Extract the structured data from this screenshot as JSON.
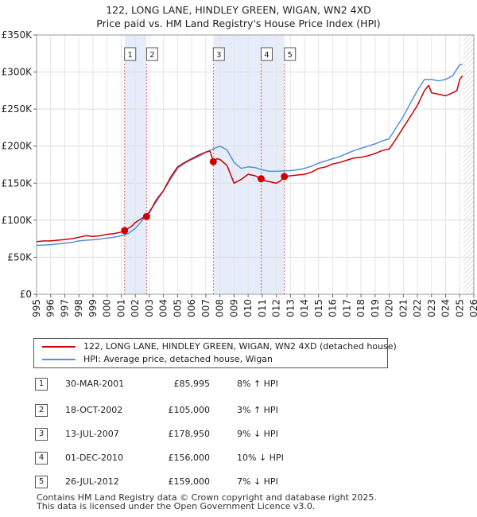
{
  "chart_data": {
    "type": "line",
    "title": "122, LONG LANE, HINDLEY GREEN, WIGAN, WN2 4XD",
    "subtitle": "Price paid vs. HM Land Registry's House Price Index (HPI)",
    "ylim": [
      0,
      350000
    ],
    "xlim": [
      1995,
      2026
    ],
    "y_ticks": [
      {
        "value": 0,
        "label": "£0"
      },
      {
        "value": 50000,
        "label": "£50K"
      },
      {
        "value": 100000,
        "label": "£100K"
      },
      {
        "value": 150000,
        "label": "£150K"
      },
      {
        "value": 200000,
        "label": "£200K"
      },
      {
        "value": 250000,
        "label": "£250K"
      },
      {
        "value": 300000,
        "label": "£300K"
      },
      {
        "value": 350000,
        "label": "£350K"
      }
    ],
    "x_ticks": [
      "1995",
      "1996",
      "1997",
      "1998",
      "1999",
      "2000",
      "2001",
      "2002",
      "2003",
      "2004",
      "2005",
      "2006",
      "2007",
      "2008",
      "2009",
      "2010",
      "2011",
      "2012",
      "2013",
      "2014",
      "2015",
      "2016",
      "2017",
      "2018",
      "2019",
      "2020",
      "2021",
      "2022",
      "2023",
      "2024",
      "2025",
      "2026"
    ],
    "series": [
      {
        "name": "122, LONG LANE, HINDLEY GREEN, WIGAN, WN2 4XD (detached house)",
        "color": "#cc0000",
        "x": [
          1995,
          1995.5,
          1996,
          1996.5,
          1997,
          1997.5,
          1998,
          1998.5,
          1999,
          1999.5,
          2000,
          2000.5,
          2001,
          2001.25,
          2001.75,
          2002,
          2002.5,
          2002.8,
          2003,
          2003.5,
          2004,
          2004.5,
          2005,
          2005.5,
          2006,
          2006.5,
          2007,
          2007.3,
          2007.53,
          2007.8,
          2008,
          2008.5,
          2009,
          2009.5,
          2010,
          2010.5,
          2010.92,
          2011,
          2011.5,
          2012,
          2012.3,
          2012.57,
          2013,
          2013.5,
          2014,
          2014.5,
          2015,
          2015.5,
          2016,
          2016.5,
          2017,
          2017.5,
          2018,
          2018.5,
          2019,
          2019.5,
          2020,
          2020.5,
          2021,
          2021.5,
          2022,
          2022.5,
          2022.8,
          2023,
          2023.5,
          2024,
          2024.5,
          2024.8,
          2025,
          2025.2
        ],
        "y": [
          71000,
          72000,
          72000,
          73000,
          74000,
          75000,
          77000,
          79000,
          78000,
          79000,
          81000,
          82000,
          84000,
          85995,
          92000,
          97000,
          103000,
          105000,
          110000,
          128000,
          140000,
          158000,
          172000,
          178000,
          183000,
          188000,
          192000,
          193000,
          178950,
          183000,
          182000,
          174000,
          150000,
          155000,
          162000,
          160000,
          156000,
          154000,
          152000,
          150000,
          153000,
          159000,
          160000,
          161000,
          162000,
          165000,
          170000,
          172000,
          176000,
          178000,
          181000,
          184000,
          185000,
          187000,
          190000,
          194000,
          196000,
          210000,
          225000,
          240000,
          255000,
          275000,
          282000,
          272000,
          270000,
          268000,
          272000,
          275000,
          290000,
          295000
        ]
      },
      {
        "name": "HPI: Average price, detached house, Wigan",
        "color": "#5b8fd6",
        "x": [
          1995,
          1995.5,
          1996,
          1996.5,
          1997,
          1997.5,
          1998,
          1998.5,
          1999,
          1999.5,
          2000,
          2000.5,
          2001,
          2001.5,
          2002,
          2002.5,
          2003,
          2003.5,
          2004,
          2004.5,
          2005,
          2005.5,
          2006,
          2006.5,
          2007,
          2007.5,
          2008,
          2008.5,
          2009,
          2009.5,
          2010,
          2010.5,
          2011,
          2011.5,
          2012,
          2012.5,
          2013,
          2013.5,
          2014,
          2014.5,
          2015,
          2015.5,
          2016,
          2016.5,
          2017,
          2017.5,
          2018,
          2018.5,
          2019,
          2019.5,
          2020,
          2020.5,
          2021,
          2021.5,
          2022,
          2022.5,
          2023,
          2023.5,
          2024,
          2024.5,
          2025,
          2025.2
        ],
        "y": [
          66000,
          66500,
          67000,
          68000,
          69000,
          70000,
          72000,
          73000,
          73500,
          74500,
          76000,
          77000,
          79000,
          82000,
          89000,
          100000,
          112000,
          125000,
          140000,
          155000,
          170000,
          177000,
          182000,
          186000,
          192000,
          196000,
          200000,
          195000,
          178000,
          170000,
          172000,
          171000,
          168000,
          166000,
          166000,
          166500,
          167000,
          168000,
          170000,
          173000,
          177000,
          180000,
          183000,
          186000,
          190000,
          194000,
          197000,
          200000,
          203000,
          207000,
          210000,
          225000,
          240000,
          258000,
          275000,
          290000,
          290000,
          288000,
          290000,
          295000,
          310000,
          310000
        ]
      }
    ],
    "sales": [
      {
        "num": "1",
        "x": 2001.24,
        "price": 85995
      },
      {
        "num": "2",
        "x": 2002.8,
        "price": 105000
      },
      {
        "num": "3",
        "x": 2007.53,
        "price": 178950
      },
      {
        "num": "4",
        "x": 2010.92,
        "price": 156000
      },
      {
        "num": "5",
        "x": 2012.57,
        "price": 159000
      }
    ],
    "shaded_ranges": [
      [
        2001.24,
        2002.8
      ],
      [
        2007.53,
        2012.57
      ]
    ],
    "forecast_from": 2025.25
  },
  "legend": {
    "property_label": "122, LONG LANE, HINDLEY GREEN, WIGAN, WN2 4XD (detached house)",
    "hpi_label": "HPI: Average price, detached house, Wigan"
  },
  "sales_table": [
    {
      "num": "1",
      "date": "30-MAR-2001",
      "price": "£85,995",
      "hpi": "8% ↑ HPI"
    },
    {
      "num": "2",
      "date": "18-OCT-2002",
      "price": "£105,000",
      "hpi": "3% ↑ HPI"
    },
    {
      "num": "3",
      "date": "13-JUL-2007",
      "price": "£178,950",
      "hpi": "9% ↓ HPI"
    },
    {
      "num": "4",
      "date": "01-DEC-2010",
      "price": "£156,000",
      "hpi": "10% ↓ HPI"
    },
    {
      "num": "5",
      "date": "26-JUL-2012",
      "price": "£159,000",
      "hpi": "7% ↓ HPI"
    }
  ],
  "footer": {
    "line1": "Contains HM Land Registry data © Crown copyright and database right 2025.",
    "line2": "This data is licensed under the Open Government Licence v3.0."
  }
}
